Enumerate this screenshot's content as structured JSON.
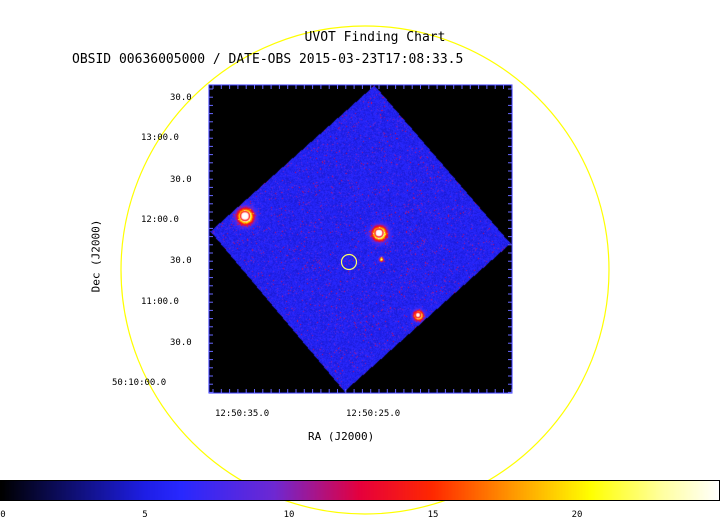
{
  "title": "UVOT Finding Chart",
  "subtitle": "OBSID 00636005000 / DATE-OBS 2015-03-23T17:08:33.5",
  "axes": {
    "x_label": "RA (J2000)",
    "y_label": "Dec (J2000)",
    "x_ticks": [
      "12:50:35.0",
      "12:50:25.0"
    ],
    "y_ticks": [
      "30.0",
      "13:00.0",
      "30.0",
      "12:00.0",
      "30.0",
      "11:00.0",
      "30.0",
      "50:10:00.0"
    ]
  },
  "colorbar": {
    "ticks": [
      "0",
      "5",
      "10",
      "15",
      "20"
    ],
    "min": 0,
    "max": 24.4
  },
  "colors": {
    "field_circle": "#ffff00",
    "target_circle": "#ffff66",
    "background": "#000000",
    "exposure_base": "#1a1acc",
    "frame_tick": "#3333ff"
  }
}
